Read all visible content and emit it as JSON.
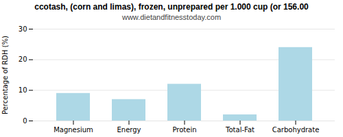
{
  "chart_data": {
    "type": "bar",
    "title": "ccotash, (corn and limas), frozen, unprepared per 1.000 cup (or 156.00",
    "subtitle": "www.dietandfitnesstoday.com",
    "categories": [
      "Magnesium",
      "Energy",
      "Protein",
      "Total-Fat",
      "Carbohydrate"
    ],
    "values": [
      9.0,
      7.0,
      12.0,
      2.0,
      24.0
    ],
    "color": "#add8e6",
    "y_label": "Percentage of RDH (%)",
    "ylim": [
      0,
      30
    ],
    "yticks": [
      0,
      10,
      20,
      30
    ],
    "grid": true
  }
}
